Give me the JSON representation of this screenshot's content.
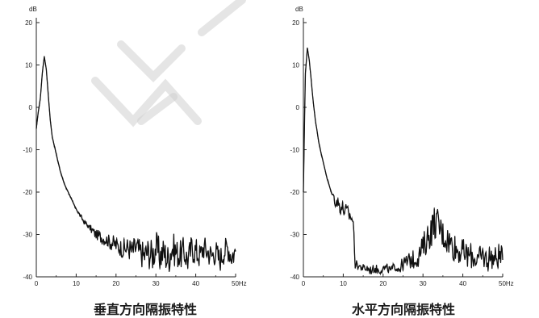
{
  "chart_data": [
    {
      "type": "line",
      "title": "垂直方向隔振特性",
      "y_unit": "dB",
      "x_unit": "Hz",
      "xlim": [
        0,
        50
      ],
      "ylim": [
        -40,
        20
      ],
      "x_ticks": [
        "0",
        "10",
        "20",
        "30",
        "40",
        "50Hz"
      ],
      "y_ticks": [
        "20",
        "10",
        "0",
        "-10",
        "-20",
        "-30",
        "-40"
      ],
      "grid": false,
      "series": [
        {
          "x": [
            0,
            0.5,
            1,
            1.5,
            2,
            2.5,
            3,
            3.5,
            4,
            5,
            6,
            7,
            8,
            9,
            10,
            11,
            12,
            13,
            14,
            15,
            16,
            17,
            18,
            19,
            20,
            21,
            22,
            23,
            24,
            25,
            26,
            27,
            28,
            29,
            30,
            31,
            32,
            33,
            34,
            35,
            36,
            37,
            38,
            39,
            40,
            41,
            42,
            43,
            44,
            45,
            46,
            47,
            48,
            49,
            50
          ],
          "y": [
            -5,
            -1,
            2,
            8,
            12,
            9,
            3,
            -3,
            -7,
            -11,
            -15,
            -18,
            -20,
            -22,
            -24,
            -25.5,
            -27,
            -28,
            -29,
            -30,
            -30.5,
            -31,
            -31.5,
            -32,
            -32.5,
            -33,
            -33.5,
            -33,
            -34,
            -33,
            -34,
            -35,
            -34,
            -35,
            -33,
            -35,
            -34,
            -36,
            -33,
            -34,
            -35,
            -34,
            -36,
            -33,
            -34,
            -35,
            -33,
            -34,
            -35,
            -34,
            -36,
            -34,
            -33,
            -35,
            -34
          ],
          "noise": [
            0,
            0,
            0,
            0,
            0,
            0,
            0,
            0,
            0,
            0,
            0,
            0,
            0,
            0,
            0,
            0.5,
            0.5,
            0.5,
            1,
            1,
            1.5,
            1.5,
            1.5,
            2,
            2,
            2,
            2.5,
            2.5,
            3,
            3,
            3,
            3.5,
            3.5,
            4,
            4,
            4,
            3.5,
            4,
            4,
            3.5,
            3.5,
            3.5,
            3,
            3.5,
            3.5,
            3,
            3,
            3,
            3,
            3,
            3,
            3,
            3,
            3,
            3
          ]
        }
      ]
    },
    {
      "type": "line",
      "title": "水平方向隔振特性",
      "y_unit": "dB",
      "x_unit": "Hz",
      "xlim": [
        0,
        50
      ],
      "ylim": [
        -40,
        20
      ],
      "x_ticks": [
        "0",
        "10",
        "20",
        "30",
        "40",
        "50Hz"
      ],
      "y_ticks": [
        "20",
        "10",
        "0",
        "-10",
        "-20",
        "-30",
        "-40"
      ],
      "grid": false,
      "series": [
        {
          "x": [
            0,
            0.5,
            1,
            1.5,
            2,
            2.5,
            3,
            3.5,
            4,
            5,
            6,
            7,
            8,
            9,
            10,
            11,
            12,
            12.5,
            13,
            14,
            15,
            16,
            17,
            18,
            19,
            20,
            21,
            22,
            23,
            24,
            25,
            26,
            27,
            28,
            29,
            30,
            31,
            32,
            33,
            34,
            35,
            36,
            37,
            38,
            39,
            40,
            41,
            42,
            43,
            44,
            45,
            46,
            47,
            48,
            49,
            50
          ],
          "y": [
            -20,
            8,
            14,
            11,
            6,
            1,
            -3,
            -6,
            -9,
            -13,
            -17,
            -20,
            -22,
            -23,
            -24,
            -25,
            -26,
            -27,
            -37,
            -37.5,
            -38,
            -38,
            -38.5,
            -38,
            -38.5,
            -38,
            -38,
            -38.5,
            -37.5,
            -38,
            -37,
            -36.5,
            -36,
            -36,
            -35,
            -33,
            -31,
            -29,
            -27,
            -28,
            -30,
            -31,
            -32,
            -33,
            -34,
            -34,
            -35,
            -35,
            -35.5,
            -36,
            -35,
            -36,
            -35,
            -36,
            -35,
            -36
          ],
          "noise": [
            0,
            0,
            0,
            0,
            0,
            0,
            0,
            0,
            0,
            0,
            0,
            0,
            1.5,
            2,
            2,
            2,
            1.5,
            1,
            1,
            1,
            1,
            1,
            1,
            1,
            1,
            1,
            1,
            1,
            1,
            1.5,
            1.5,
            2,
            2,
            2,
            2.5,
            3,
            3.5,
            4,
            4,
            4,
            3.5,
            3.5,
            3.5,
            3.5,
            3,
            3,
            3,
            3,
            3,
            3,
            3,
            3,
            3,
            3,
            3,
            3
          ]
        }
      ]
    }
  ]
}
